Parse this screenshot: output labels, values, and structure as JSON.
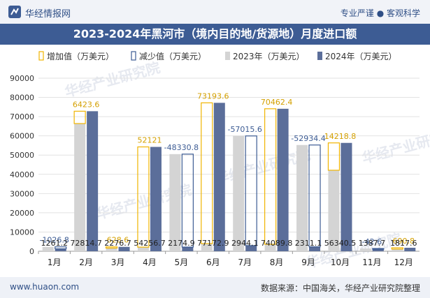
{
  "header": {
    "site_name": "华经情报网",
    "slogan": "专业严谨 ● 客观科学"
  },
  "title": "2023-2024年黑河市（境内目的地/货源地）月度进口额",
  "footer": {
    "url": "www.huaon.com",
    "source": "数据来源：中国海关，华经产业研究院整理"
  },
  "watermark": "华经产业研究院",
  "colors": {
    "bar_2023": "#d4d4d4",
    "bar_2024": "#5b6e9a",
    "increase_outline": "#f0b400",
    "decrease_outline": "#3d5c94",
    "change_label_up": "#d4a000",
    "change_label_down": "#3d5c94",
    "title_bg": "#3d5c94"
  },
  "chart_data": {
    "type": "bar",
    "title": "2023-2024年黑河市（境内目的地/货源地）月度进口额",
    "categories": [
      "1月",
      "2月",
      "3月",
      "4月",
      "5月",
      "6月",
      "7月",
      "8月",
      "9月",
      "10月",
      "11月",
      "12月"
    ],
    "series": [
      {
        "name": "2023年（万美元）",
        "values": [
          2288.0,
          66391.1,
          1648.1,
          2135.7,
          50505.7,
          3979.3,
          59959.7,
          3627.4,
          55245.5,
          42121.7,
          1430.3,
          1127.0
        ]
      },
      {
        "name": "2024年（万美元）",
        "values": [
          1261.2,
          72814.7,
          2276.7,
          54256.7,
          2174.9,
          77172.9,
          2944.1,
          74089.8,
          2311.1,
          56340.5,
          1387.7,
          1817.6
        ]
      }
    ],
    "change": {
      "name_increase": "增加值（万美元）",
      "name_decrease": "减少值（万美元）",
      "values": [
        -1026.8,
        6423.6,
        628.6,
        52121,
        -48330.8,
        73193.6,
        -57015.6,
        70462.4,
        -52934.4,
        14218.8,
        -42.6,
        690.8
      ],
      "labels": [
        "-1026.8",
        "6423.6",
        "628.6",
        "52121",
        "-48330.8",
        "73193.6",
        "-57015.6",
        "70462.4",
        "-52934.4",
        "14218.8",
        "-42.6",
        "690.8"
      ]
    },
    "value_labels": [
      "1261.2",
      "72814.7",
      "2276.7",
      "54256.7",
      "2174.9",
      "77172.9",
      "2944.1",
      "74089.8",
      "2311.1",
      "56340.5",
      "1387.7",
      "1817.6"
    ],
    "yticks": [
      "0",
      "10000",
      "20000",
      "30000",
      "40000",
      "50000",
      "60000",
      "70000",
      "80000",
      "90000"
    ],
    "ylim": [
      0,
      90000
    ],
    "grid": true,
    "legend_position": "top"
  }
}
